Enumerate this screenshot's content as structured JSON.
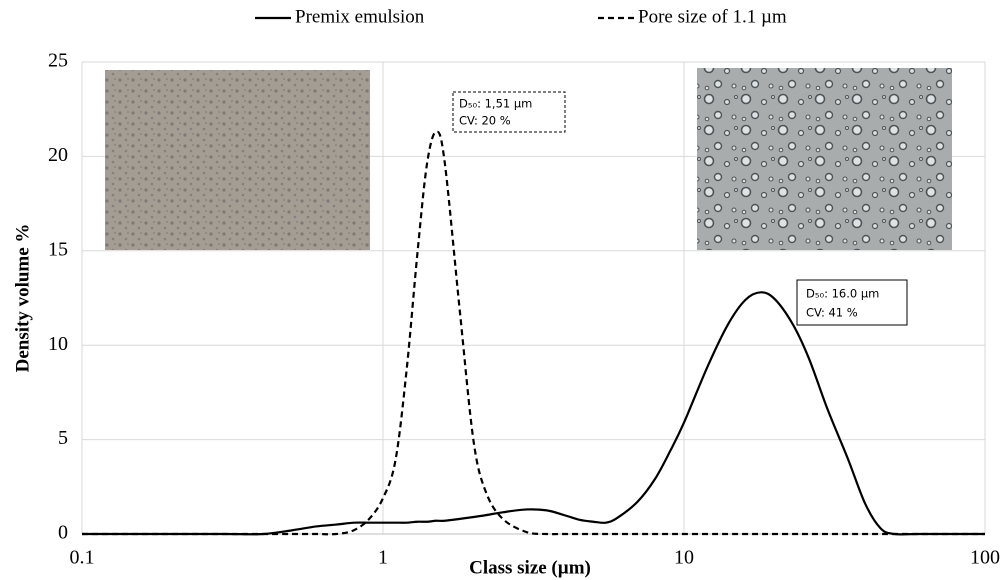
{
  "chart_data": {
    "type": "line",
    "x_label": "Class size (µm)",
    "y_label": "Density volume %",
    "xscale": "log",
    "xlim": [
      0.1,
      100
    ],
    "xticks": [
      0.1,
      1,
      10,
      100
    ],
    "ylim": [
      0,
      25
    ],
    "yticks": [
      0,
      5,
      10,
      15,
      20,
      25
    ],
    "grid": true,
    "legend": "top",
    "x": [
      0.1,
      0.2,
      0.3,
      0.4,
      0.5,
      0.6,
      0.7,
      0.8,
      0.9,
      1.0,
      1.1,
      1.2,
      1.3,
      1.4,
      1.5,
      1.6,
      1.8,
      2.0,
      2.2,
      2.5,
      3.0,
      3.5,
      4.0,
      4.5,
      5.0,
      5.5,
      6.0,
      7.0,
      8.0,
      9.0,
      10,
      12,
      14,
      16,
      18,
      20,
      23,
      26,
      30,
      35,
      40,
      45,
      50,
      60,
      100
    ],
    "series": [
      {
        "name": "Premix emulsion",
        "color": "#000000",
        "style": "solid",
        "values": [
          0,
          0,
          0,
          0,
          0.2,
          0.4,
          0.5,
          0.6,
          0.6,
          0.6,
          0.6,
          0.6,
          0.65,
          0.65,
          0.7,
          0.7,
          0.8,
          0.9,
          1.0,
          1.15,
          1.3,
          1.25,
          1.0,
          0.75,
          0.65,
          0.6,
          0.85,
          1.7,
          2.9,
          4.4,
          5.9,
          8.9,
          11.1,
          12.4,
          12.8,
          12.45,
          11.1,
          9.3,
          6.6,
          4.0,
          1.6,
          0.3,
          0,
          0,
          0
        ]
      },
      {
        "name": "Pore size of 1.1 µm",
        "color": "#000000",
        "style": "dashed",
        "values": [
          0,
          0,
          0,
          0,
          0,
          0,
          0,
          0.2,
          0.8,
          1.9,
          3.9,
          8.8,
          14.8,
          19.6,
          21.3,
          19.8,
          11.8,
          4.9,
          2.2,
          0.8,
          0.1,
          0,
          0,
          0,
          0,
          0,
          0,
          0,
          0,
          0,
          0,
          0,
          0,
          0,
          0,
          0,
          0,
          0,
          0,
          0,
          0,
          0,
          0,
          0,
          0
        ]
      }
    ],
    "annotations": [
      {
        "lines": [
          "D₅₀: 1,51 µm",
          "CV: 20 %"
        ],
        "border": "dashed"
      },
      {
        "lines": [
          "D₅₀: 16.0 µm",
          "CV: 41 %"
        ],
        "border": "solid"
      }
    ]
  }
}
